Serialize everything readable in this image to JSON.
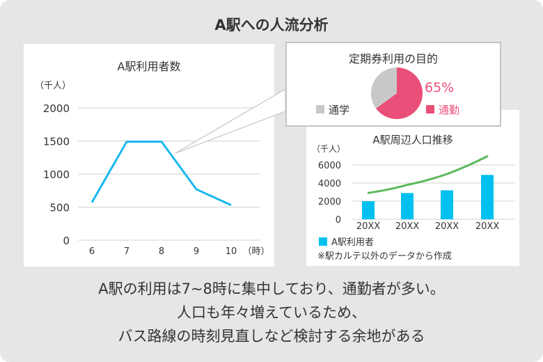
{
  "title": "A駅への人流分析",
  "charts": {
    "ridership": {
      "title": "A駅利用者数",
      "yunit": "（千人）",
      "xunit": "（時）",
      "y_ticks": [
        "2000",
        "1500",
        "1000",
        "500",
        "0"
      ],
      "x_ticks": [
        "6",
        "7",
        "8",
        "9",
        "10"
      ]
    },
    "commuter_pass": {
      "title": "定期券利用の目的",
      "percent_label": "65%",
      "legend_school": "通学",
      "legend_work": "通勤"
    },
    "population": {
      "title": "A駅周辺人口推移",
      "yunit": "（千人）",
      "y_ticks": [
        "6000",
        "4000",
        "2000",
        "0"
      ],
      "x_ticks": [
        "20XX",
        "20XX",
        "20XX",
        "20XX"
      ],
      "legend_bar": "A駅利用者",
      "note": "※駅カルテ以外のデータから作成"
    }
  },
  "summary": [
    "A駅の利用は7~8時に集中しており、通勤者が多い。",
    "人口も年々増えているため、",
    "バス路線の時刻見直しなど検討する余地がある"
  ],
  "colors": {
    "line": "#1ab8f0",
    "bar": "#00c0f0",
    "trend": "#5cb85c",
    "pie_work": "#e94f78",
    "pie_school": "#c8c8c8",
    "frame": "#e6e6e6"
  },
  "chart_data": [
    {
      "type": "line",
      "title": "A駅利用者数",
      "x": [
        6,
        7,
        8,
        9,
        10
      ],
      "y": [
        570,
        1490,
        1490,
        770,
        530
      ],
      "ylabel": "（千人）",
      "xlabel": "（時）",
      "ylim": [
        0,
        2000
      ],
      "grid": true
    },
    {
      "type": "pie",
      "title": "定期券利用の目的",
      "labels": [
        "通勤",
        "通学"
      ],
      "values": [
        65,
        35
      ]
    },
    {
      "type": "bar",
      "title": "A駅周辺人口推移",
      "categories": [
        "20XX",
        "20XX",
        "20XX",
        "20XX"
      ],
      "series": [
        {
          "name": "A駅利用者",
          "values": [
            2000,
            2900,
            3200,
            4900
          ]
        }
      ],
      "trend": [
        2900,
        3800,
        5000,
        7000
      ],
      "ylabel": "（千人）",
      "ylim": [
        0,
        6000
      ],
      "grid": true
    }
  ]
}
